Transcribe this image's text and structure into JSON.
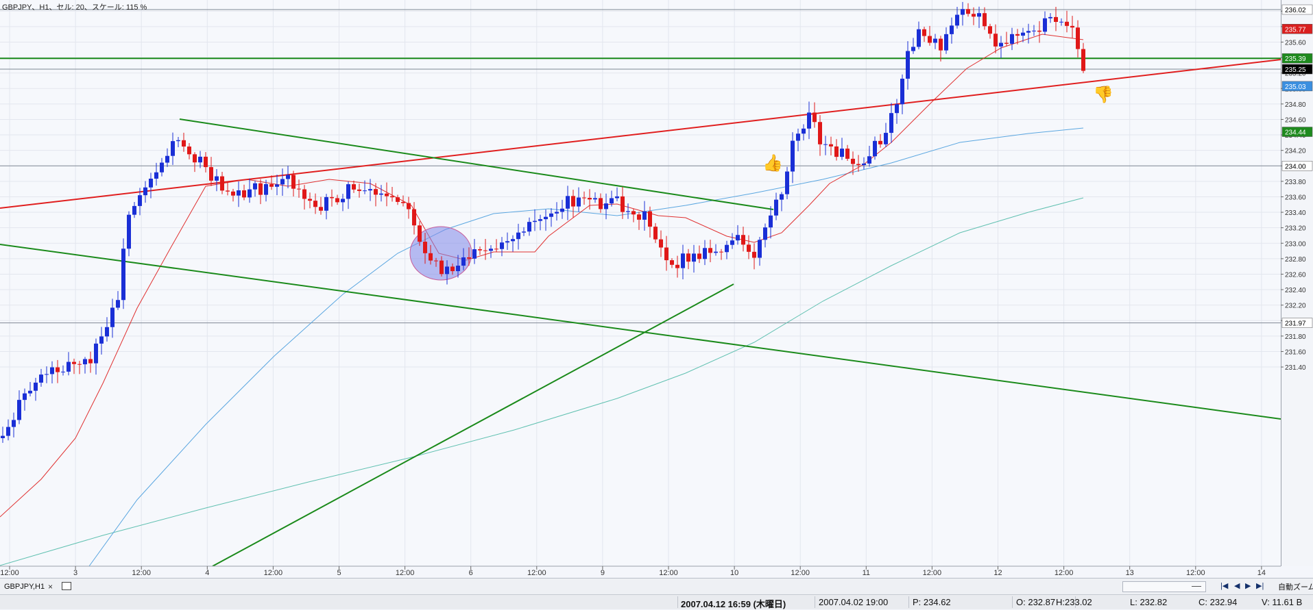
{
  "chart_title": "GBPJPY、H1、セル: 20、スケール: 115 %",
  "price_axis": {
    "ticks": [
      "236.00",
      "235.80",
      "235.60",
      "235.40",
      "235.20",
      "235.00",
      "234.80",
      "234.60",
      "234.40",
      "234.20",
      "234.00",
      "233.80",
      "233.60",
      "233.40",
      "233.20",
      "233.00",
      "232.80",
      "232.60",
      "232.40",
      "232.20",
      "232.00",
      "231.80",
      "231.60",
      "231.40"
    ],
    "badges": [
      {
        "label": "236.02",
        "price": 236.02,
        "color": "#ffffff",
        "text_color": "#000000"
      },
      {
        "label": "235.77",
        "price": 235.77,
        "color": "#d91f1f",
        "text_color": "#ffffff"
      },
      {
        "label": "235.39",
        "price": 235.39,
        "color": "#1e8a1e",
        "text_color": "#ffffff"
      },
      {
        "label": "235.25",
        "price": 235.25,
        "color": "#000000",
        "text_color": "#ffffff"
      },
      {
        "label": "235.03",
        "price": 235.03,
        "color": "#3b8fe0",
        "text_color": "#ffffff"
      },
      {
        "label": "234.44",
        "price": 234.44,
        "color": "#1e8a1e",
        "text_color": "#ffffff"
      },
      {
        "label": "234.00",
        "price": 234.0,
        "color": "#ffffff",
        "text_color": "#000000"
      },
      {
        "label": "231.97",
        "price": 231.97,
        "color": "#ffffff",
        "text_color": "#000000"
      }
    ]
  },
  "time_axis": {
    "labels": [
      "12:00",
      "3",
      "12:00",
      "4",
      "12:00",
      "5",
      "12:00",
      "6",
      "12:00",
      "9",
      "12:00",
      "10",
      "12:00",
      "11",
      "12:00",
      "12",
      "12:00",
      "13",
      "12:00",
      "14"
    ]
  },
  "tab_bar": {
    "tab_label": "GBPJPY,H1",
    "close_symbol": "×",
    "auto_zoom_label": "自動ズーム"
  },
  "status_bar": {
    "current_datetime": "2007.04.12 16:59 (木曜日)",
    "cursor_datetime": "2007.04.02 19:00",
    "price": "P: 234.62",
    "open": "O: 232.87",
    "high": "H:233.02",
    "low": "L: 232.82",
    "close": "C: 232.94",
    "volume": "V: 11.61 B"
  },
  "colors": {
    "bull_candle": "#1a2fd6",
    "bear_candle": "#e01818",
    "ma_fast": "#e03030",
    "ma_mid": "#5aa6e0",
    "ma_slow": "#5fc0b0",
    "trendline_red": "#e01e1e",
    "trendline_green": "#1a8a1a",
    "highlight_ellipse": "#7f86e8"
  },
  "icons": [
    "thumbs-up-icon",
    "thumbs-down-icon",
    "first-page-icon",
    "prev-icon",
    "next-icon",
    "last-page-icon",
    "close-icon",
    "window-icon"
  ]
}
